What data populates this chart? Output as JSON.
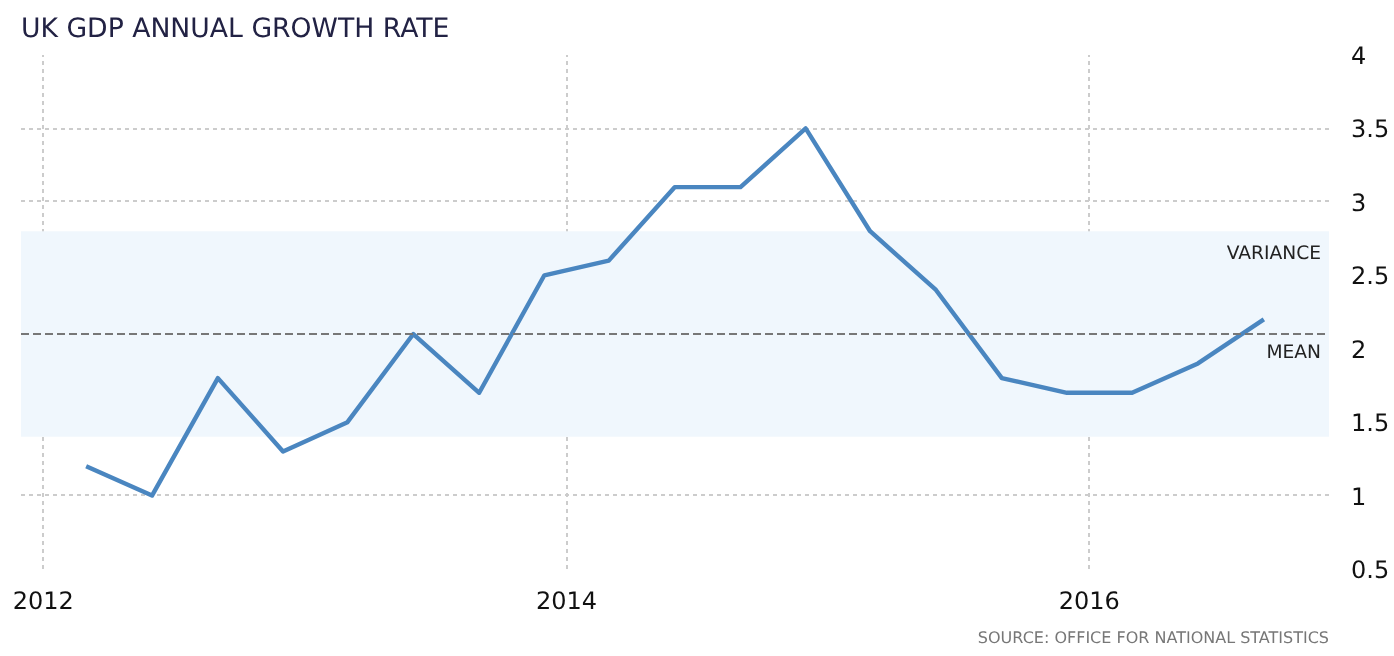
{
  "chart_data": {
    "type": "line",
    "title": "UK GDP ANNUAL GROWTH RATE",
    "x": [
      "2012-03",
      "2012-06",
      "2012-09",
      "2012-12",
      "2013-03",
      "2013-06",
      "2013-09",
      "2013-12",
      "2014-03",
      "2014-06",
      "2014-09",
      "2014-12",
      "2015-03",
      "2015-06",
      "2015-09",
      "2015-12",
      "2016-03",
      "2016-06",
      "2016-09"
    ],
    "series": [
      {
        "color": "#4a86c0",
        "values": [
          1.2,
          1.0,
          1.8,
          1.3,
          1.5,
          2.1,
          1.7,
          2.5,
          2.6,
          3.1,
          3.1,
          3.5,
          2.8,
          2.4,
          1.8,
          1.7,
          1.7,
          1.9,
          2.2
        ]
      }
    ],
    "xlim": [
      "2011-12",
      "2016-12"
    ],
    "xticks": [
      "2012",
      "2014",
      "2016"
    ],
    "ylim": [
      0.5,
      4
    ],
    "yticks": [
      0.5,
      1,
      1.5,
      2,
      2.5,
      3,
      3.5,
      4
    ],
    "grid": true,
    "marker": "none",
    "line_style": "solid",
    "ref_lines": [
      {
        "axis": "y",
        "value": 2.1,
        "label": "MEAN",
        "color": "#777777",
        "line_style": "dashed"
      }
    ],
    "bands": [
      {
        "axis": "y",
        "from": 1.4,
        "to": 2.8,
        "label": "VARIANCE",
        "color": "#f0f7fd"
      }
    ],
    "annotations": [
      "SOURCE: OFFICE FOR NATIONAL STATISTICS"
    ]
  }
}
